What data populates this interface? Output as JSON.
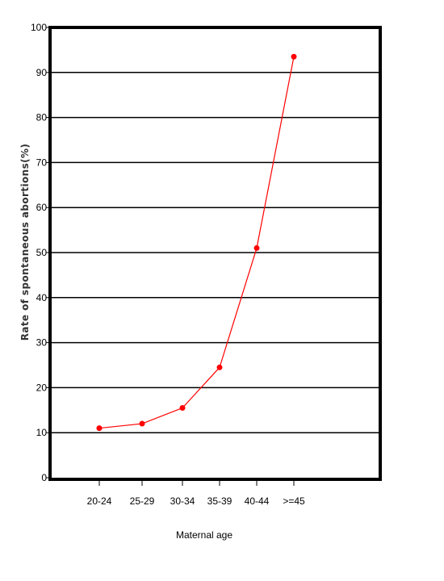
{
  "chart_data": {
    "type": "line",
    "title": "",
    "xlabel": "Maternal age",
    "ylabel": "Rate of spontaneous abortions(%)",
    "categories": [
      "20-24",
      "25-29",
      "30-34",
      "35-39",
      "40-44",
      ">=45"
    ],
    "series": [
      {
        "values": [
          11,
          12,
          15.5,
          24.5,
          51,
          93.5
        ]
      }
    ],
    "ylim": [
      0,
      100
    ],
    "yticks": [
      "0",
      "10",
      "20",
      "30",
      "40",
      "50",
      "60",
      "70",
      "80",
      "90",
      "100"
    ],
    "grid": true,
    "legend": "none",
    "colors": {
      "series": "#ff0000",
      "grid": "#000000",
      "frame": "#000000"
    }
  }
}
